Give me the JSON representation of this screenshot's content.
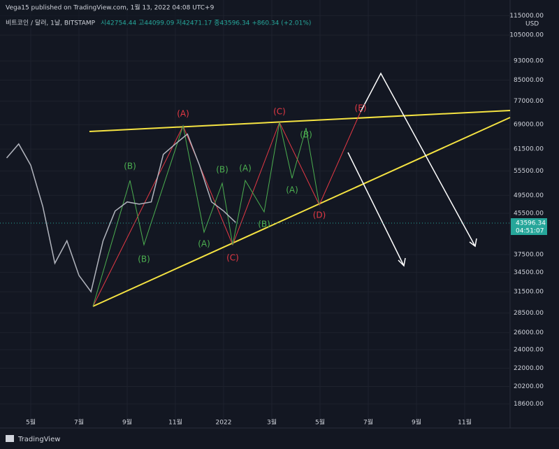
{
  "header": {
    "publisher": "Vega15 published on TradingView.com, 1월 13, 2022 04:08 UTC+9",
    "symbol": "비트코인 / 달러, 1날, BITSTAMP",
    "ohlc": "시42754.44 고44099.09 저42471.17 종43596.34 +860.34 (+2.01%)"
  },
  "price_tag": {
    "price": "43596.34",
    "countdown": "04:51:07"
  },
  "currency": "USD",
  "footer": "TradingView",
  "waves": [
    "(A)",
    "(C)",
    "(E)",
    "(B)",
    "(B)",
    "(A)",
    "(B)",
    "(A)",
    "(B)",
    "(A)",
    "(B)",
    "(C)",
    "(D)"
  ],
  "chart_data": {
    "type": "line",
    "log_scale": true,
    "grid": true,
    "categories": [
      null,
      null,
      "5월",
      null,
      null,
      null,
      "7월",
      null,
      null,
      null,
      "9월",
      null,
      null,
      null,
      "11월",
      null,
      null,
      null,
      "2022",
      null,
      null,
      null,
      "3월",
      null,
      null,
      null,
      "5월",
      null,
      null,
      null,
      "7월",
      null,
      null,
      null,
      "9월",
      null,
      null,
      null,
      "11월",
      null,
      null,
      null
    ],
    "series": [
      {
        "color": "#b2b5be",
        "values": [
          59000,
          63000,
          57000,
          47000,
          36000,
          40000,
          34000,
          31500,
          40000,
          46000,
          48000,
          47500,
          48000,
          60000,
          63000,
          66000,
          57000,
          48000,
          46000,
          43596,
          null,
          null,
          null,
          null,
          null,
          null,
          null,
          null,
          null,
          null,
          null,
          null,
          null,
          null,
          null,
          null,
          null,
          null,
          null,
          null,
          null,
          null
        ]
      }
    ],
    "ylim": [
      17400,
      119000
    ],
    "yticks": [
      {
        "value": 115000,
        "label": "115000.00"
      },
      {
        "value": 105000,
        "label": "105000.00"
      },
      {
        "value": 93000,
        "label": "93000.00"
      },
      {
        "value": 85000,
        "label": "85000.00"
      },
      {
        "value": 77000,
        "label": "77000.00"
      },
      {
        "value": 69000,
        "label": "69000.00"
      },
      {
        "value": 61500,
        "label": "61500.00"
      },
      {
        "value": 55500,
        "label": "55500.00"
      },
      {
        "value": 49500,
        "label": "49500.00"
      },
      {
        "value": 45500,
        "label": "45500.00"
      },
      {
        "value": 37500,
        "label": "37500.00"
      },
      {
        "value": 34500,
        "label": "34500.00"
      },
      {
        "value": 31500,
        "label": "31500.00"
      },
      {
        "value": 28500,
        "label": "28500.00"
      },
      {
        "value": 26000,
        "label": "26000.00"
      },
      {
        "value": 24000,
        "label": "24000.00"
      },
      {
        "value": 22000,
        "label": "22000.00"
      },
      {
        "value": 20200,
        "label": "20200.00"
      },
      {
        "value": 18600,
        "label": "18600.00"
      }
    ]
  }
}
